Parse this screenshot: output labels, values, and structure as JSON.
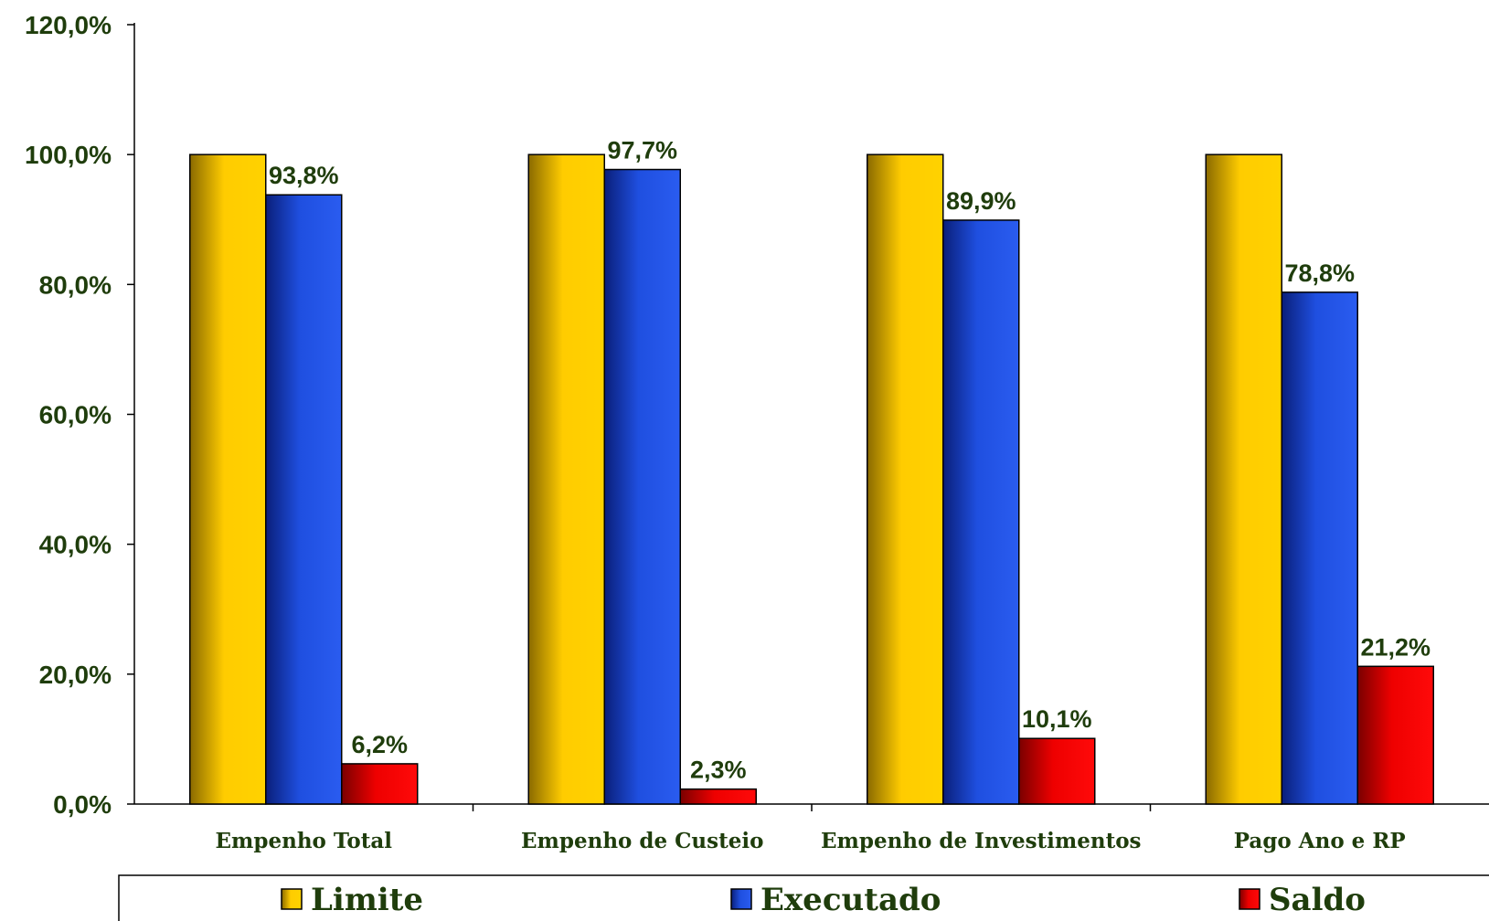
{
  "chart_data": {
    "type": "bar",
    "categories": [
      "Empenho Total",
      "Empenho de Custeio",
      "Empenho de Investimentos",
      "Pago Ano e RP"
    ],
    "series": [
      {
        "name": "Limite",
        "values": [
          100.0,
          100.0,
          100.0,
          100.0
        ],
        "labels": [
          null,
          null,
          null,
          null
        ]
      },
      {
        "name": "Executado",
        "values": [
          93.8,
          97.7,
          89.9,
          78.8
        ],
        "labels": [
          "93,8%",
          "97,7%",
          "89,9%",
          "78,8%"
        ]
      },
      {
        "name": "Saldo",
        "values": [
          6.2,
          2.3,
          10.1,
          21.2
        ],
        "labels": [
          "6,2%",
          "2,3%",
          "10,1%",
          "21,2%"
        ]
      }
    ],
    "colors": {
      "Limite": "#ffcc00",
      "Executado": "#1f4fe0",
      "Saldo": "#ee0000"
    },
    "ylim": [
      0,
      120
    ],
    "yticks": [
      0,
      20,
      40,
      60,
      80,
      100,
      120
    ],
    "ytick_labels": [
      "0,0%",
      "20,0%",
      "40,0%",
      "60,0%",
      "80,0%",
      "100,0%",
      "120,0%"
    ],
    "grid": false,
    "legend_position": "bottom",
    "title": "",
    "xlabel": "",
    "ylabel": ""
  }
}
